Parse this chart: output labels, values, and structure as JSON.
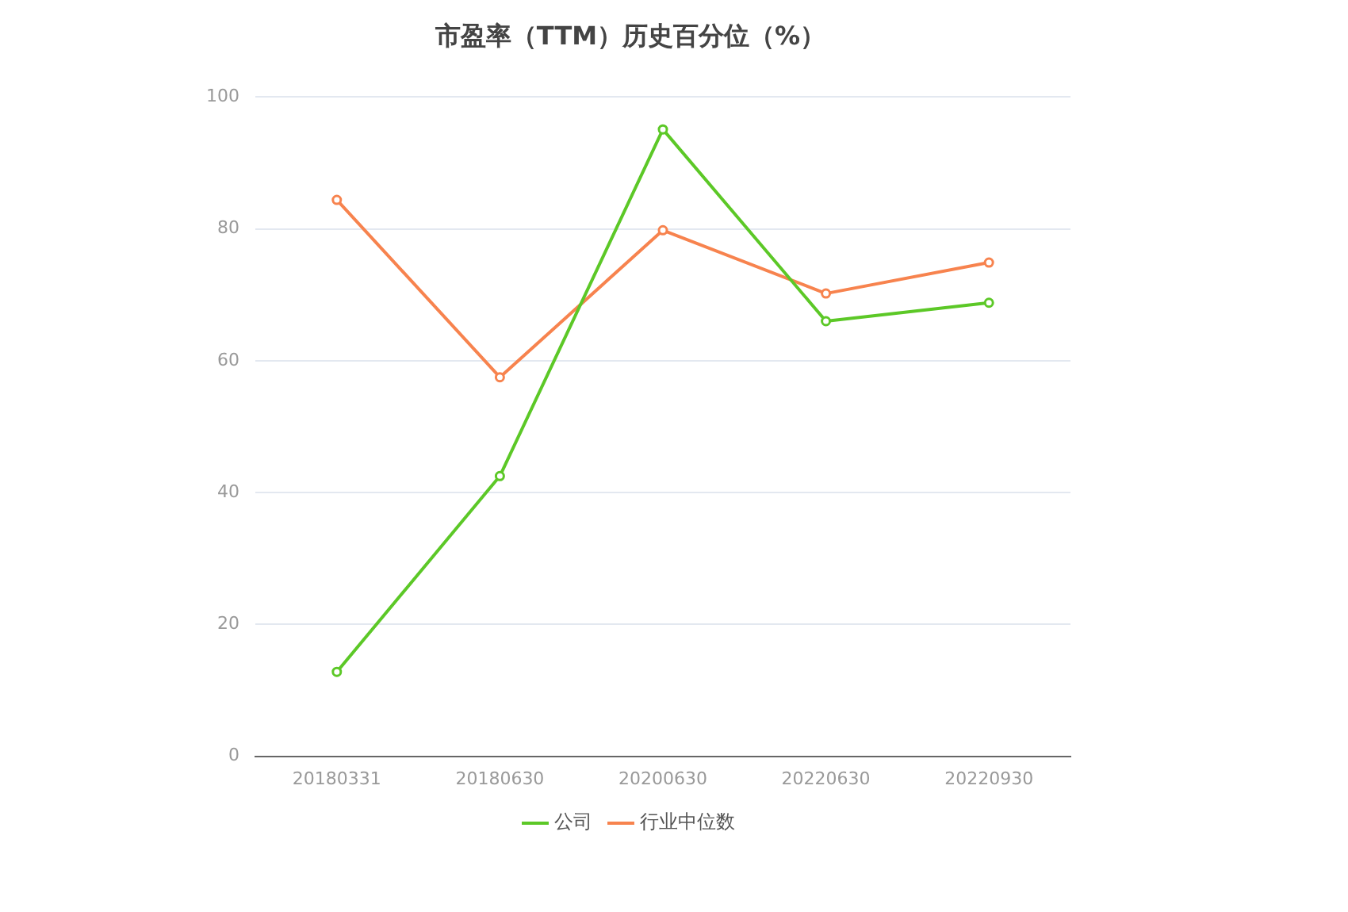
{
  "chart_data": {
    "type": "line",
    "title": "市盈率（TTM）历史百分位（%）",
    "categories": [
      "20180331",
      "20180630",
      "20200630",
      "20220630",
      "20220930"
    ],
    "series": [
      {
        "name": "公司",
        "color": "#5cc827",
        "values": [
          12.8,
          42.5,
          95.1,
          66.0,
          68.8
        ]
      },
      {
        "name": "行业中位数",
        "color": "#f7834e",
        "values": [
          84.4,
          57.5,
          79.8,
          70.2,
          74.9
        ]
      }
    ],
    "ylim": [
      0,
      100
    ],
    "yticks": [
      0,
      20,
      40,
      60,
      80,
      100
    ],
    "grid": "y",
    "legend": "bottom",
    "marker": "circle",
    "line_style": "solid"
  }
}
